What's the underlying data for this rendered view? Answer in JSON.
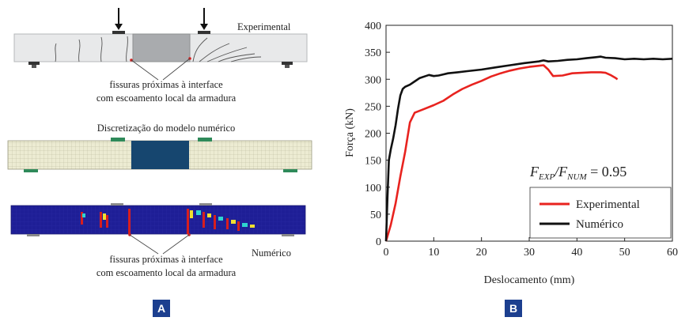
{
  "panel_a": {
    "experimental_label": "Experimental",
    "annotation_top": [
      "fissuras próximas à interface",
      "com escoamento local da armadura"
    ],
    "discretization_title": "Discretização do modelo numérico",
    "numeric_label": "Numérico",
    "annotation_bottom": [
      "fissuras próximas à interface",
      "com escoamento local da armadura"
    ],
    "badge": "A",
    "colors": {
      "mesh_block": "#16466f",
      "contour_field": "#1e1e96",
      "crack_marker": "#d81e1e",
      "badge": "#1c3f8f"
    }
  },
  "panel_b": {
    "badge": "B",
    "ratio_label": {
      "base": "F",
      "sub1": "EXP",
      "sep": "/F",
      "sub2": "NUM",
      "value": " = 0.95"
    }
  },
  "chart_data": {
    "type": "line",
    "xlabel": "Deslocamento (mm)",
    "ylabel": "Força (kN)",
    "xlim": [
      0,
      60
    ],
    "ylim": [
      0,
      400
    ],
    "xticks": [
      "0",
      "10",
      "20",
      "30",
      "40",
      "50",
      "60"
    ],
    "yticks": [
      "0",
      "50",
      "100",
      "150",
      "200",
      "250",
      "300",
      "350",
      "400"
    ],
    "grid": false,
    "legend_position": "bottom-right",
    "series": [
      {
        "name": "Experimental",
        "color": "#e8231f",
        "points": [
          [
            0,
            0
          ],
          [
            1,
            30
          ],
          [
            2,
            70
          ],
          [
            3,
            120
          ],
          [
            4,
            165
          ],
          [
            5,
            220
          ],
          [
            6,
            238
          ],
          [
            8,
            245
          ],
          [
            10,
            252
          ],
          [
            12,
            260
          ],
          [
            14,
            272
          ],
          [
            16,
            282
          ],
          [
            18,
            290
          ],
          [
            20,
            297
          ],
          [
            22,
            305
          ],
          [
            24,
            311
          ],
          [
            26,
            316
          ],
          [
            28,
            320
          ],
          [
            30,
            323
          ],
          [
            32,
            325
          ],
          [
            33,
            326
          ],
          [
            34,
            318
          ],
          [
            35,
            306
          ],
          [
            37,
            307
          ],
          [
            39,
            311
          ],
          [
            41,
            312
          ],
          [
            43,
            313
          ],
          [
            45,
            313
          ],
          [
            46,
            312
          ],
          [
            47,
            308
          ],
          [
            48,
            303
          ],
          [
            48.5,
            300
          ]
        ]
      },
      {
        "name": "Numérico",
        "color": "#111111",
        "points": [
          [
            0,
            0
          ],
          [
            0.3,
            80
          ],
          [
            0.6,
            150
          ],
          [
            1,
            170
          ],
          [
            1.5,
            190
          ],
          [
            2,
            215
          ],
          [
            2.5,
            245
          ],
          [
            3,
            270
          ],
          [
            3.5,
            282
          ],
          [
            4,
            286
          ],
          [
            5,
            290
          ],
          [
            6,
            296
          ],
          [
            7,
            302
          ],
          [
            8,
            305
          ],
          [
            9,
            308
          ],
          [
            10,
            306
          ],
          [
            11,
            307
          ],
          [
            12,
            309
          ],
          [
            13,
            311
          ],
          [
            15,
            313
          ],
          [
            17,
            315
          ],
          [
            20,
            318
          ],
          [
            23,
            322
          ],
          [
            26,
            326
          ],
          [
            29,
            330
          ],
          [
            32,
            333
          ],
          [
            33,
            335
          ],
          [
            34,
            333
          ],
          [
            36,
            334
          ],
          [
            38,
            336
          ],
          [
            40,
            337
          ],
          [
            42,
            339
          ],
          [
            44,
            341
          ],
          [
            45,
            342
          ],
          [
            46,
            340
          ],
          [
            48,
            339
          ],
          [
            50,
            337
          ],
          [
            52,
            338
          ],
          [
            54,
            337
          ],
          [
            56,
            338
          ],
          [
            58,
            337
          ],
          [
            60,
            338
          ]
        ]
      }
    ]
  }
}
